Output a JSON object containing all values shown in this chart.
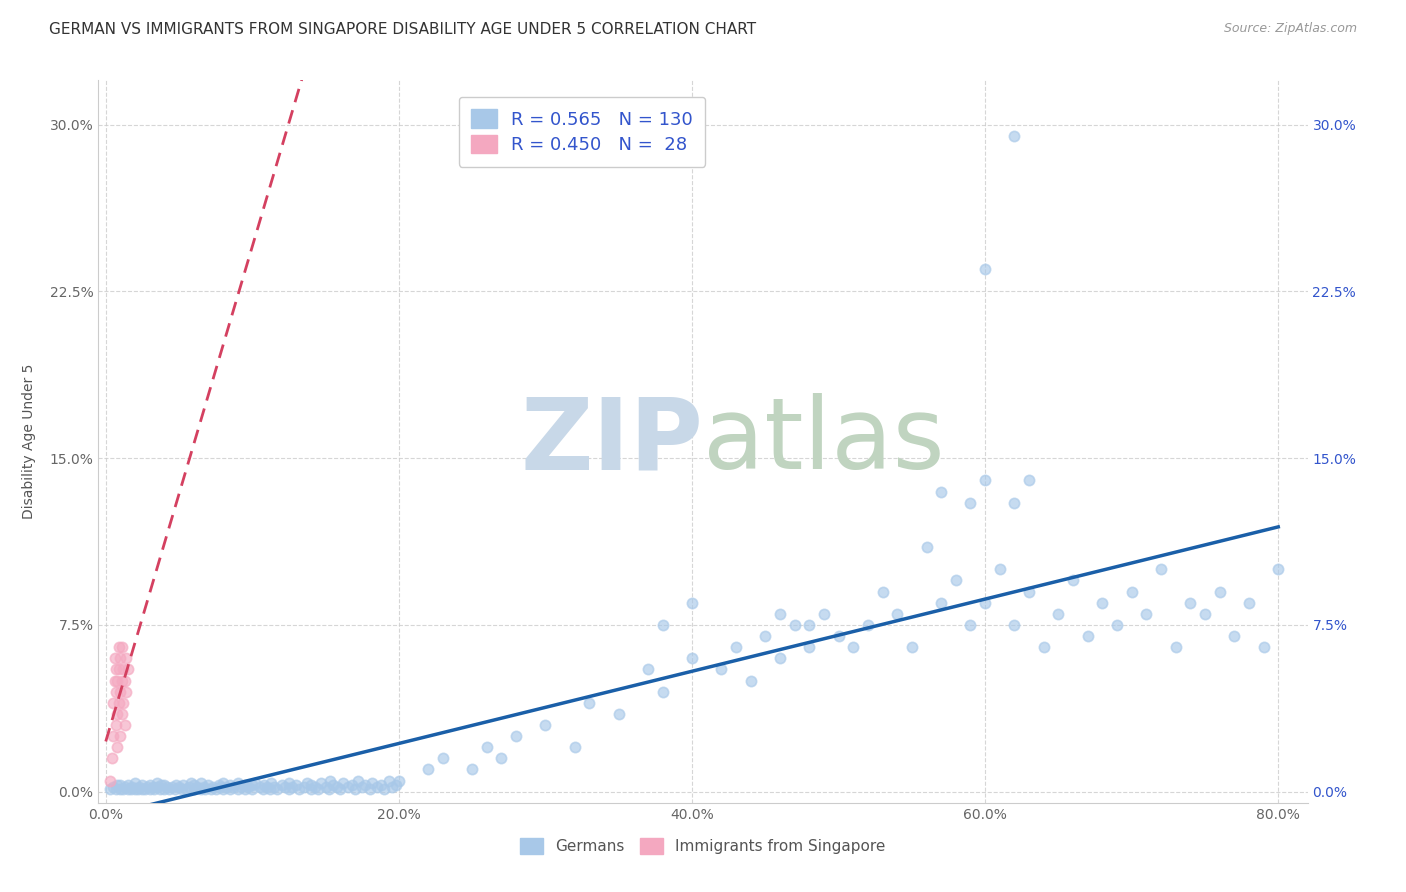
{
  "title": "GERMAN VS IMMIGRANTS FROM SINGAPORE DISABILITY AGE UNDER 5 CORRELATION CHART",
  "source": "Source: ZipAtlas.com",
  "ylabel": "Disability Age Under 5",
  "xlabel_ticks": [
    "0.0%",
    "20.0%",
    "40.0%",
    "60.0%",
    "80.0%"
  ],
  "xlabel_vals": [
    0.0,
    0.2,
    0.4,
    0.6,
    0.8
  ],
  "ylabel_ticks": [
    "0.0%",
    "7.5%",
    "15.0%",
    "22.5%",
    "30.0%"
  ],
  "ylabel_vals": [
    0.0,
    0.075,
    0.15,
    0.225,
    0.3
  ],
  "xlim": [
    -0.005,
    0.82
  ],
  "ylim": [
    -0.005,
    0.32
  ],
  "legend_labels": [
    "Germans",
    "Immigrants from Singapore"
  ],
  "blue_color": "#a8c8e8",
  "pink_color": "#f4a8c0",
  "blue_line_color": "#1a5fa8",
  "pink_line_color": "#d44060",
  "background_color": "#ffffff",
  "watermark_zip": "ZIP",
  "watermark_atlas": "atlas",
  "title_fontsize": 11,
  "axis_label_fontsize": 10,
  "tick_fontsize": 10,
  "scatter_size": 55,
  "blue_scatter": [
    [
      0.003,
      0.001
    ],
    [
      0.005,
      0.002
    ],
    [
      0.007,
      0.001
    ],
    [
      0.008,
      0.003
    ],
    [
      0.01,
      0.001
    ],
    [
      0.01,
      0.003
    ],
    [
      0.012,
      0.001
    ],
    [
      0.013,
      0.002
    ],
    [
      0.015,
      0.001
    ],
    [
      0.015,
      0.003
    ],
    [
      0.017,
      0.001
    ],
    [
      0.018,
      0.002
    ],
    [
      0.02,
      0.001
    ],
    [
      0.02,
      0.004
    ],
    [
      0.022,
      0.001
    ],
    [
      0.023,
      0.002
    ],
    [
      0.025,
      0.001
    ],
    [
      0.025,
      0.003
    ],
    [
      0.027,
      0.001
    ],
    [
      0.028,
      0.002
    ],
    [
      0.03,
      0.001
    ],
    [
      0.03,
      0.003
    ],
    [
      0.032,
      0.002
    ],
    [
      0.033,
      0.001
    ],
    [
      0.035,
      0.002
    ],
    [
      0.035,
      0.004
    ],
    [
      0.037,
      0.001
    ],
    [
      0.038,
      0.003
    ],
    [
      0.04,
      0.001
    ],
    [
      0.04,
      0.003
    ],
    [
      0.042,
      0.002
    ],
    [
      0.043,
      0.001
    ],
    [
      0.045,
      0.002
    ],
    [
      0.047,
      0.001
    ],
    [
      0.048,
      0.003
    ],
    [
      0.05,
      0.002
    ],
    [
      0.052,
      0.001
    ],
    [
      0.053,
      0.003
    ],
    [
      0.055,
      0.001
    ],
    [
      0.057,
      0.002
    ],
    [
      0.058,
      0.004
    ],
    [
      0.06,
      0.001
    ],
    [
      0.06,
      0.003
    ],
    [
      0.062,
      0.002
    ],
    [
      0.065,
      0.001
    ],
    [
      0.065,
      0.004
    ],
    [
      0.067,
      0.002
    ],
    [
      0.068,
      0.001
    ],
    [
      0.07,
      0.003
    ],
    [
      0.072,
      0.001
    ],
    [
      0.073,
      0.002
    ],
    [
      0.075,
      0.001
    ],
    [
      0.077,
      0.003
    ],
    [
      0.078,
      0.002
    ],
    [
      0.08,
      0.001
    ],
    [
      0.08,
      0.004
    ],
    [
      0.082,
      0.002
    ],
    [
      0.085,
      0.001
    ],
    [
      0.085,
      0.003
    ],
    [
      0.087,
      0.002
    ],
    [
      0.09,
      0.001
    ],
    [
      0.09,
      0.004
    ],
    [
      0.092,
      0.002
    ],
    [
      0.095,
      0.001
    ],
    [
      0.095,
      0.003
    ],
    [
      0.097,
      0.002
    ],
    [
      0.1,
      0.001
    ],
    [
      0.1,
      0.003
    ],
    [
      0.102,
      0.004
    ],
    [
      0.105,
      0.002
    ],
    [
      0.107,
      0.001
    ],
    [
      0.108,
      0.003
    ],
    [
      0.11,
      0.002
    ],
    [
      0.112,
      0.001
    ],
    [
      0.113,
      0.004
    ],
    [
      0.115,
      0.002
    ],
    [
      0.117,
      0.001
    ],
    [
      0.12,
      0.003
    ],
    [
      0.122,
      0.002
    ],
    [
      0.125,
      0.001
    ],
    [
      0.125,
      0.004
    ],
    [
      0.127,
      0.002
    ],
    [
      0.13,
      0.003
    ],
    [
      0.132,
      0.001
    ],
    [
      0.135,
      0.002
    ],
    [
      0.137,
      0.004
    ],
    [
      0.14,
      0.001
    ],
    [
      0.14,
      0.003
    ],
    [
      0.143,
      0.002
    ],
    [
      0.145,
      0.001
    ],
    [
      0.147,
      0.004
    ],
    [
      0.15,
      0.002
    ],
    [
      0.152,
      0.001
    ],
    [
      0.153,
      0.005
    ],
    [
      0.155,
      0.003
    ],
    [
      0.158,
      0.002
    ],
    [
      0.16,
      0.001
    ],
    [
      0.162,
      0.004
    ],
    [
      0.165,
      0.002
    ],
    [
      0.168,
      0.003
    ],
    [
      0.17,
      0.001
    ],
    [
      0.172,
      0.005
    ],
    [
      0.175,
      0.002
    ],
    [
      0.177,
      0.003
    ],
    [
      0.18,
      0.001
    ],
    [
      0.182,
      0.004
    ],
    [
      0.185,
      0.002
    ],
    [
      0.188,
      0.003
    ],
    [
      0.19,
      0.001
    ],
    [
      0.193,
      0.005
    ],
    [
      0.195,
      0.002
    ],
    [
      0.198,
      0.003
    ],
    [
      0.3,
      0.03
    ],
    [
      0.32,
      0.02
    ],
    [
      0.33,
      0.04
    ],
    [
      0.35,
      0.035
    ],
    [
      0.37,
      0.055
    ],
    [
      0.38,
      0.045
    ],
    [
      0.4,
      0.06
    ],
    [
      0.42,
      0.055
    ],
    [
      0.43,
      0.065
    ],
    [
      0.44,
      0.05
    ],
    [
      0.45,
      0.07
    ],
    [
      0.46,
      0.06
    ],
    [
      0.47,
      0.075
    ],
    [
      0.48,
      0.065
    ],
    [
      0.49,
      0.08
    ],
    [
      0.5,
      0.07
    ],
    [
      0.51,
      0.065
    ],
    [
      0.52,
      0.075
    ],
    [
      0.53,
      0.09
    ],
    [
      0.54,
      0.08
    ],
    [
      0.55,
      0.065
    ],
    [
      0.56,
      0.11
    ],
    [
      0.57,
      0.085
    ],
    [
      0.58,
      0.095
    ],
    [
      0.59,
      0.075
    ],
    [
      0.6,
      0.085
    ],
    [
      0.61,
      0.1
    ],
    [
      0.62,
      0.075
    ],
    [
      0.63,
      0.09
    ],
    [
      0.64,
      0.065
    ],
    [
      0.65,
      0.08
    ],
    [
      0.66,
      0.095
    ],
    [
      0.67,
      0.07
    ],
    [
      0.68,
      0.085
    ],
    [
      0.69,
      0.075
    ],
    [
      0.7,
      0.09
    ],
    [
      0.71,
      0.08
    ],
    [
      0.72,
      0.1
    ],
    [
      0.73,
      0.065
    ],
    [
      0.74,
      0.085
    ],
    [
      0.75,
      0.08
    ],
    [
      0.76,
      0.09
    ],
    [
      0.77,
      0.07
    ],
    [
      0.78,
      0.085
    ],
    [
      0.79,
      0.065
    ],
    [
      0.8,
      0.1
    ],
    [
      0.57,
      0.135
    ],
    [
      0.59,
      0.13
    ],
    [
      0.6,
      0.14
    ],
    [
      0.62,
      0.13
    ],
    [
      0.63,
      0.14
    ],
    [
      0.6,
      0.235
    ],
    [
      0.62,
      0.295
    ],
    [
      0.46,
      0.08
    ],
    [
      0.48,
      0.075
    ],
    [
      0.38,
      0.075
    ],
    [
      0.4,
      0.085
    ],
    [
      0.25,
      0.01
    ],
    [
      0.26,
      0.02
    ],
    [
      0.27,
      0.015
    ],
    [
      0.28,
      0.025
    ],
    [
      0.2,
      0.005
    ],
    [
      0.22,
      0.01
    ],
    [
      0.23,
      0.015
    ]
  ],
  "pink_scatter": [
    [
      0.003,
      0.005
    ],
    [
      0.004,
      0.015
    ],
    [
      0.005,
      0.025
    ],
    [
      0.005,
      0.04
    ],
    [
      0.006,
      0.05
    ],
    [
      0.006,
      0.06
    ],
    [
      0.007,
      0.03
    ],
    [
      0.007,
      0.045
    ],
    [
      0.007,
      0.055
    ],
    [
      0.008,
      0.02
    ],
    [
      0.008,
      0.035
    ],
    [
      0.008,
      0.05
    ],
    [
      0.009,
      0.04
    ],
    [
      0.009,
      0.055
    ],
    [
      0.009,
      0.065
    ],
    [
      0.01,
      0.025
    ],
    [
      0.01,
      0.045
    ],
    [
      0.01,
      0.06
    ],
    [
      0.011,
      0.035
    ],
    [
      0.011,
      0.05
    ],
    [
      0.011,
      0.065
    ],
    [
      0.012,
      0.04
    ],
    [
      0.012,
      0.055
    ],
    [
      0.013,
      0.03
    ],
    [
      0.013,
      0.05
    ],
    [
      0.014,
      0.045
    ],
    [
      0.014,
      0.06
    ],
    [
      0.015,
      0.055
    ]
  ]
}
